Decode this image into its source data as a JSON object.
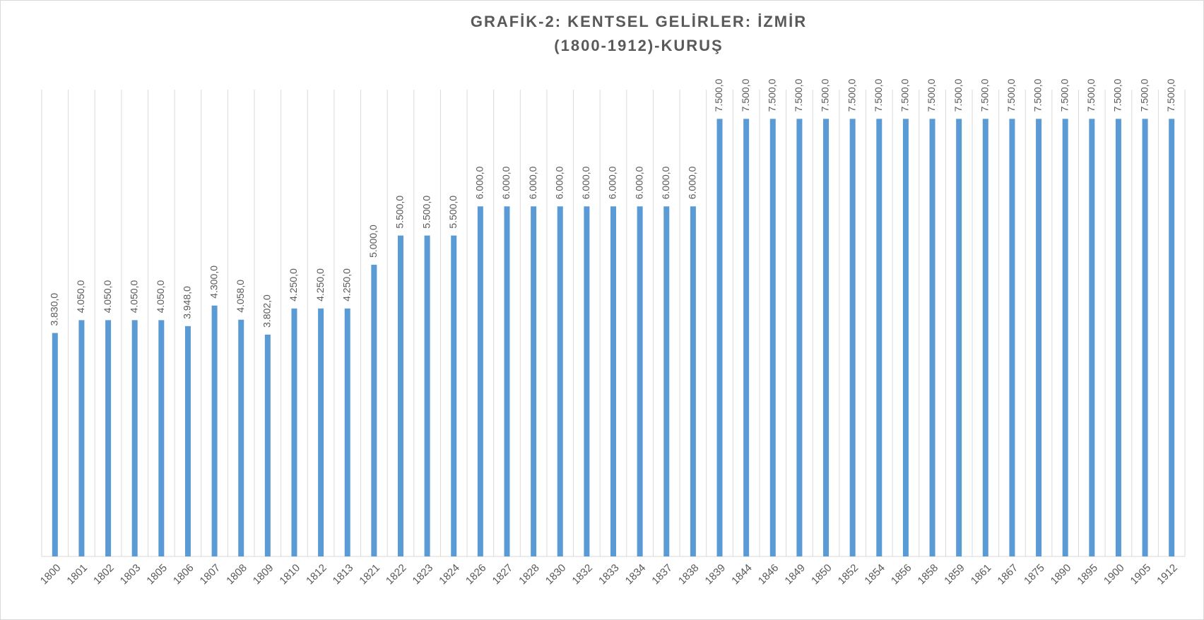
{
  "chart_data": {
    "type": "bar",
    "title": [
      "GRAFİK-2: KENTSEL GELİRLER: İZMİR",
      "(1800-1912)-KURUŞ"
    ],
    "categories": [
      "1800",
      "1801",
      "1802",
      "1803",
      "1805",
      "1806",
      "1807",
      "1808",
      "1809",
      "1810",
      "1812",
      "1813",
      "1821",
      "1822",
      "1823",
      "1824",
      "1826",
      "1827",
      "1828",
      "1830",
      "1832",
      "1833",
      "1834",
      "1837",
      "1838",
      "1839",
      "1844",
      "1846",
      "1849",
      "1850",
      "1852",
      "1854",
      "1856",
      "1858",
      "1859",
      "1861",
      "1867",
      "1875",
      "1890",
      "1895",
      "1900",
      "1905",
      "1912"
    ],
    "values": [
      3830,
      4050,
      4050,
      4050,
      4050,
      3948,
      4300,
      4058,
      3802,
      4250,
      4250,
      4250,
      5000,
      5500,
      5500,
      5500,
      6000,
      6000,
      6000,
      6000,
      6000,
      6000,
      6000,
      6000,
      6000,
      7500,
      7500,
      7500,
      7500,
      7500,
      7500,
      7500,
      7500,
      7500,
      7500,
      7500,
      7500,
      7500,
      7500,
      7500,
      7500,
      7500,
      7500
    ],
    "value_labels": [
      "3.830,0",
      "4.050,0",
      "4.050,0",
      "4.050,0",
      "4.050,0",
      "3.948,0",
      "4.300,0",
      "4.058,0",
      "3.802,0",
      "4.250,0",
      "4.250,0",
      "4.250,0",
      "5.000,0",
      "5.500,0",
      "5.500,0",
      "5.500,0",
      "6.000,0",
      "6.000,0",
      "6.000,0",
      "6.000,0",
      "6.000,0",
      "6.000,0",
      "6.000,0",
      "6.000,0",
      "6.000,0",
      "7.500,0",
      "7.500,0",
      "7.500,0",
      "7.500,0",
      "7.500,0",
      "7.500,0",
      "7.500,0",
      "7.500,0",
      "7.500,0",
      "7.500,0",
      "7.500,0",
      "7.500,0",
      "7.500,0",
      "7.500,0",
      "7.500,0",
      "7.500,0",
      "7.500,0",
      "7.500,0"
    ],
    "color": "#5b9bd5",
    "ylim": [
      0,
      8000
    ],
    "grid": true
  }
}
